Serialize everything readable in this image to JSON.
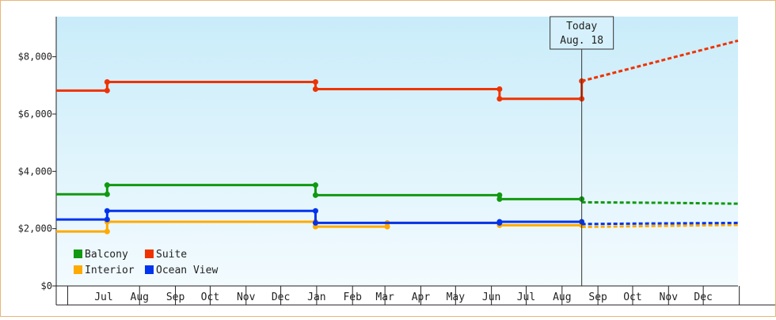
{
  "chart_data": {
    "type": "line",
    "step": true,
    "title": "",
    "xlabel": "",
    "ylabel": "",
    "y_tick_format": "$#,###",
    "ylim": [
      0,
      9400
    ],
    "y_ticks": [
      {
        "value": 0,
        "label": "$0"
      },
      {
        "value": 2000,
        "label": "$2,000"
      },
      {
        "value": 4000,
        "label": "$4,000"
      },
      {
        "value": 6000,
        "label": "$6,000"
      },
      {
        "value": 8000,
        "label": "$8,000"
      }
    ],
    "xlim": [
      "2010-05-21",
      "2011-12-31"
    ],
    "x_ticks": [
      {
        "label": "Jul",
        "date": "2010-07-01"
      },
      {
        "label": "Aug",
        "date": "2010-08-01"
      },
      {
        "label": "Sep",
        "date": "2010-09-01"
      },
      {
        "label": "Oct",
        "date": "2010-10-01"
      },
      {
        "label": "Nov",
        "date": "2010-11-01"
      },
      {
        "label": "Dec",
        "date": "2010-12-01"
      },
      {
        "label": "Jan",
        "date": "2011-01-01"
      },
      {
        "label": "Feb",
        "date": "2011-02-01"
      },
      {
        "label": "Mar",
        "date": "2011-03-01"
      },
      {
        "label": "Apr",
        "date": "2011-04-01"
      },
      {
        "label": "May",
        "date": "2011-05-01"
      },
      {
        "label": "Jun",
        "date": "2011-06-01"
      },
      {
        "label": "Jul",
        "date": "2011-07-01"
      },
      {
        "label": "Aug",
        "date": "2011-08-01"
      },
      {
        "label": "Sep",
        "date": "2011-09-01"
      },
      {
        "label": "Oct",
        "date": "2011-10-01"
      },
      {
        "label": "Nov",
        "date": "2011-11-01"
      },
      {
        "label": "Dec",
        "date": "2011-12-01"
      }
    ],
    "today": {
      "date": "2011-08-18",
      "line1": "Today",
      "line2": "Aug. 18"
    },
    "legend_placement": "bottom-left",
    "series": [
      {
        "name": "Balcony",
        "color": "#119911",
        "points": [
          {
            "x": "2010-05-21",
            "y": 3200
          },
          {
            "x": "2010-07-04",
            "y": 3200
          },
          {
            "x": "2010-07-04",
            "y": 3520
          },
          {
            "x": "2010-12-31",
            "y": 3520
          },
          {
            "x": "2010-12-31",
            "y": 3170
          },
          {
            "x": "2011-06-08",
            "y": 3170
          },
          {
            "x": "2011-06-08",
            "y": 3030
          },
          {
            "x": "2011-08-18",
            "y": 3030
          }
        ],
        "forecast": [
          {
            "x": "2011-08-18",
            "y": 2920
          },
          {
            "x": "2011-11-01",
            "y": 2900
          },
          {
            "x": "2011-12-31",
            "y": 2870
          }
        ]
      },
      {
        "name": "Suite",
        "color": "#ee3300",
        "points": [
          {
            "x": "2010-05-21",
            "y": 6820
          },
          {
            "x": "2010-07-04",
            "y": 6820
          },
          {
            "x": "2010-07-04",
            "y": 7120
          },
          {
            "x": "2010-12-31",
            "y": 7120
          },
          {
            "x": "2010-12-31",
            "y": 6870
          },
          {
            "x": "2011-06-08",
            "y": 6870
          },
          {
            "x": "2011-06-08",
            "y": 6530
          },
          {
            "x": "2011-08-18",
            "y": 6530
          },
          {
            "x": "2011-08-18",
            "y": 7150
          }
        ],
        "forecast": [
          {
            "x": "2011-08-18",
            "y": 7150
          },
          {
            "x": "2011-12-31",
            "y": 8560
          }
        ]
      },
      {
        "name": "Interior",
        "color": "#ffaa00",
        "points": [
          {
            "x": "2010-05-21",
            "y": 1900
          },
          {
            "x": "2010-07-04",
            "y": 1900
          },
          {
            "x": "2010-07-04",
            "y": 2240
          },
          {
            "x": "2010-12-31",
            "y": 2240
          },
          {
            "x": "2010-12-31",
            "y": 2070
          },
          {
            "x": "2011-03-03",
            "y": 2070
          },
          {
            "x": "2011-03-03",
            "y": 2200
          },
          {
            "x": "2011-06-08",
            "y": 2200
          },
          {
            "x": "2011-06-08",
            "y": 2120
          },
          {
            "x": "2011-08-18",
            "y": 2120
          }
        ],
        "forecast": [
          {
            "x": "2011-08-18",
            "y": 2060
          },
          {
            "x": "2011-12-31",
            "y": 2130
          }
        ]
      },
      {
        "name": "Ocean View",
        "color": "#0033ee",
        "points": [
          {
            "x": "2010-05-21",
            "y": 2320
          },
          {
            "x": "2010-07-04",
            "y": 2320
          },
          {
            "x": "2010-07-04",
            "y": 2620
          },
          {
            "x": "2010-12-31",
            "y": 2620
          },
          {
            "x": "2010-12-31",
            "y": 2200
          },
          {
            "x": "2011-06-08",
            "y": 2200
          },
          {
            "x": "2011-06-08",
            "y": 2240
          },
          {
            "x": "2011-08-18",
            "y": 2240
          }
        ],
        "forecast": [
          {
            "x": "2011-08-18",
            "y": 2160
          },
          {
            "x": "2011-10-15",
            "y": 2180
          },
          {
            "x": "2011-12-31",
            "y": 2200
          }
        ]
      }
    ]
  }
}
